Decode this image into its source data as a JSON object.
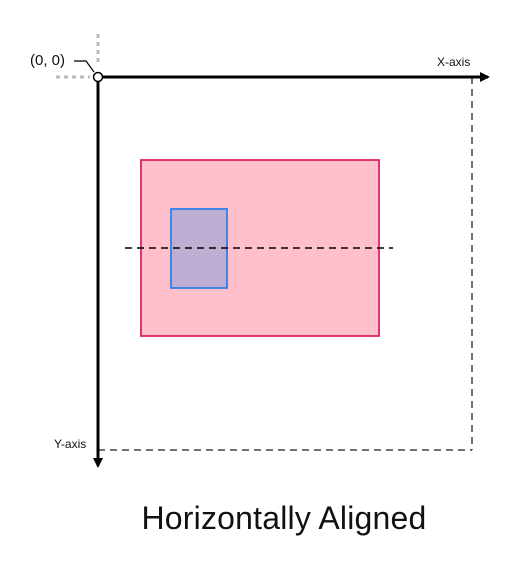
{
  "diagram": {
    "origin_label": "(0, 0)",
    "x_axis_label": "X-axis",
    "y_axis_label": "Y-axis",
    "caption": "Horizontally Aligned"
  },
  "colors": {
    "axis": "#000000",
    "guide_gray": "#bbbbbb",
    "canvas_dash": "#444444",
    "outer_rect_fill": "#ffc0cb",
    "outer_rect_stroke": "#e0245e",
    "inner_rect_fill": "#bfaed4",
    "inner_rect_stroke": "#2f7fe8",
    "center_line": "#000000"
  }
}
